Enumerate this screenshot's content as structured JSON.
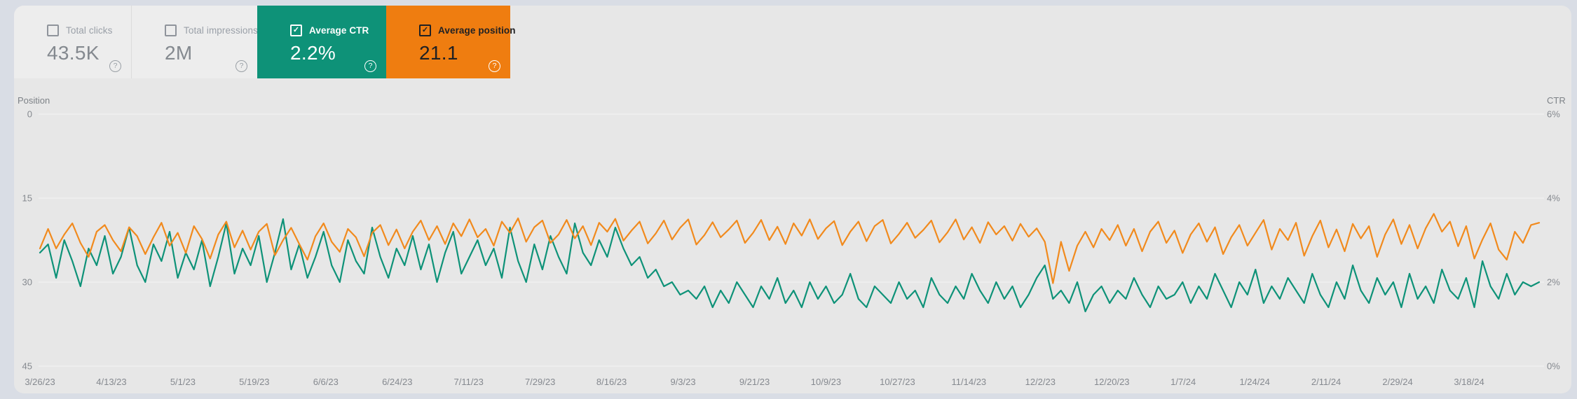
{
  "icons": {
    "help": "?",
    "check": "✓"
  },
  "colors": {
    "page_bg": "#d9dde5",
    "panel_bg": "#e7e7e7",
    "plain_card_bg": "#ededed",
    "teal": "#0e9278",
    "orange": "#ef7d10",
    "gridline": "#f3f3f1",
    "tick_text": "#85898f"
  },
  "cards": [
    {
      "label": "Total clicks",
      "value": "43.5K",
      "checked": false
    },
    {
      "label": "Total impressions",
      "value": "2M",
      "checked": false
    },
    {
      "label": "Average CTR",
      "value": "2.2%",
      "checked": true,
      "bg": "#0e9278"
    },
    {
      "label": "Average position",
      "value": "21.1",
      "checked": true,
      "bg": "#ef7d10"
    }
  ],
  "chart_data": {
    "type": "line",
    "title": "",
    "legend": "none",
    "grid": true,
    "left_axis": {
      "title": "Position",
      "ticks": [
        0,
        15,
        30,
        45
      ],
      "min": 0,
      "max": 45,
      "inverted": true
    },
    "right_axis": {
      "title": "CTR",
      "tick_labels": [
        "6%",
        "4%",
        "2%",
        "0%"
      ],
      "min": 0,
      "max": 6
    },
    "x_labels": [
      "3/26/23",
      "4/13/23",
      "5/1/23",
      "5/19/23",
      "6/6/23",
      "6/24/23",
      "7/11/23",
      "7/29/23",
      "8/16/23",
      "9/3/23",
      "9/21/23",
      "10/9/23",
      "10/27/23",
      "11/14/23",
      "12/2/23",
      "12/20/23",
      "1/7/24",
      "1/24/24",
      "2/11/24",
      "2/29/24",
      "3/18/24"
    ],
    "x_note": "daily samples every 2 days from 3/26/23 to 3/30/24",
    "series": [
      {
        "name": "Average position",
        "axis": "left",
        "color": "#f18a1d",
        "values": [
          24.0,
          20.5,
          24.0,
          21.5,
          19.5,
          23.0,
          25.5,
          21.0,
          19.8,
          22.5,
          24.5,
          20.2,
          21.8,
          25.0,
          22.0,
          19.4,
          23.5,
          21.2,
          24.8,
          20.0,
          22.3,
          25.8,
          21.5,
          19.2,
          23.8,
          20.8,
          24.2,
          21.0,
          19.6,
          25.2,
          22.5,
          20.3,
          23.2,
          26.0,
          21.8,
          19.5,
          22.8,
          24.6,
          20.5,
          22.0,
          25.4,
          21.2,
          19.8,
          23.4,
          20.6,
          24.0,
          21.0,
          19.0,
          22.5,
          20.0,
          23.2,
          19.5,
          21.8,
          18.8,
          22.0,
          20.5,
          23.5,
          19.2,
          21.2,
          18.6,
          22.8,
          20.2,
          19.0,
          23.0,
          21.5,
          18.9,
          22.2,
          20.0,
          23.4,
          19.4,
          21.0,
          18.7,
          22.6,
          20.8,
          19.2,
          23.1,
          21.3,
          19.0,
          22.4,
          20.3,
          18.8,
          23.3,
          21.6,
          19.3,
          22.0,
          20.6,
          19.0,
          23.0,
          21.2,
          18.9,
          22.5,
          20.1,
          23.2,
          19.5,
          21.7,
          18.8,
          22.3,
          20.4,
          19.1,
          23.4,
          21.0,
          19.2,
          22.7,
          20.0,
          18.9,
          23.1,
          21.4,
          19.4,
          22.1,
          20.7,
          19.0,
          22.9,
          21.1,
          18.8,
          22.4,
          20.2,
          23.0,
          19.3,
          21.5,
          20.0,
          22.6,
          19.6,
          21.9,
          20.4,
          22.8,
          30.2,
          22.8,
          28.0,
          23.5,
          21.0,
          23.8,
          20.5,
          22.5,
          19.8,
          23.5,
          20.5,
          24.5,
          21.0,
          19.2,
          23.0,
          20.8,
          24.8,
          21.5,
          19.5,
          22.8,
          20.2,
          25.0,
          22.0,
          19.8,
          23.5,
          21.2,
          18.9,
          24.2,
          20.5,
          22.5,
          19.4,
          25.3,
          21.8,
          19.0,
          23.8,
          20.6,
          24.5,
          19.6,
          22.2,
          20.0,
          25.5,
          21.5,
          18.8,
          23.2,
          19.8,
          24.0,
          20.4,
          17.8,
          21.0,
          19.2,
          23.6,
          20.0,
          25.8,
          22.4,
          19.5,
          24.2,
          26.0,
          21.0,
          23.0,
          19.8,
          19.4
        ]
      },
      {
        "name": "Average CTR",
        "axis": "right",
        "color": "#0e9278",
        "values": [
          2.7,
          2.9,
          2.1,
          3.0,
          2.5,
          1.9,
          2.8,
          2.4,
          3.1,
          2.2,
          2.6,
          3.3,
          2.4,
          2.0,
          2.9,
          2.5,
          3.2,
          2.1,
          2.7,
          2.3,
          3.0,
          1.9,
          2.6,
          3.4,
          2.2,
          2.8,
          2.4,
          3.1,
          2.0,
          2.7,
          3.5,
          2.3,
          2.9,
          2.1,
          2.6,
          3.2,
          2.4,
          2.0,
          3.0,
          2.5,
          2.2,
          3.3,
          2.6,
          2.1,
          2.8,
          2.4,
          3.1,
          2.3,
          2.9,
          2.0,
          2.7,
          3.2,
          2.2,
          2.6,
          3.0,
          2.4,
          2.8,
          2.1,
          3.3,
          2.5,
          2.0,
          2.9,
          2.3,
          3.1,
          2.6,
          2.2,
          3.4,
          2.7,
          2.4,
          3.0,
          2.6,
          3.3,
          2.8,
          2.4,
          2.6,
          2.1,
          2.3,
          1.9,
          2.0,
          1.7,
          1.8,
          1.6,
          1.9,
          1.4,
          1.8,
          1.5,
          2.0,
          1.7,
          1.4,
          1.9,
          1.6,
          2.1,
          1.5,
          1.8,
          1.4,
          2.0,
          1.6,
          1.9,
          1.5,
          1.7,
          2.2,
          1.6,
          1.4,
          1.9,
          1.7,
          1.5,
          2.0,
          1.6,
          1.8,
          1.4,
          2.1,
          1.7,
          1.5,
          1.9,
          1.6,
          2.2,
          1.8,
          1.5,
          2.0,
          1.6,
          1.9,
          1.4,
          1.7,
          2.1,
          2.4,
          1.6,
          1.8,
          1.5,
          2.0,
          1.3,
          1.7,
          1.9,
          1.5,
          1.8,
          1.6,
          2.1,
          1.7,
          1.4,
          1.9,
          1.6,
          1.7,
          2.0,
          1.5,
          1.9,
          1.6,
          2.2,
          1.8,
          1.4,
          2.0,
          1.7,
          2.3,
          1.5,
          1.9,
          1.6,
          2.1,
          1.8,
          1.5,
          2.2,
          1.7,
          1.4,
          2.0,
          1.6,
          2.4,
          1.8,
          1.5,
          2.1,
          1.7,
          2.0,
          1.4,
          2.2,
          1.6,
          1.9,
          1.5,
          2.3,
          1.8,
          1.6,
          2.1,
          1.4,
          2.5,
          1.9,
          1.6,
          2.2,
          1.7,
          2.0,
          1.9,
          2.0
        ]
      }
    ]
  }
}
